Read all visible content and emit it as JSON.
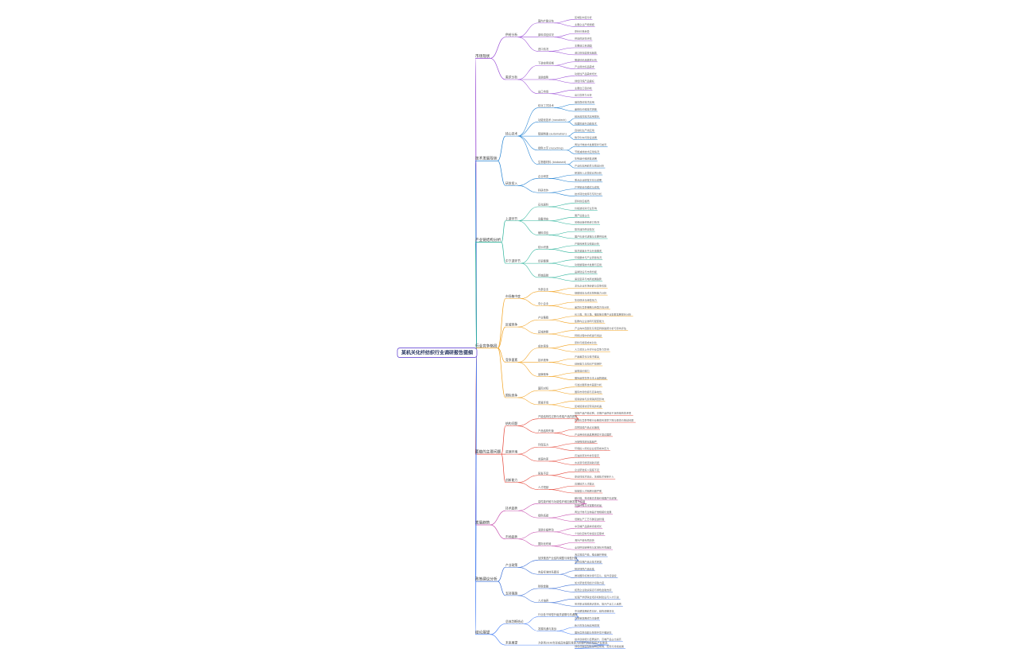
{
  "mindmap": {
    "root": {
      "label": "某机关化纤纺织行业调研报告提纲"
    },
    "colors": [
      "#9b4fd6",
      "#1f7fd1",
      "#2bb39a",
      "#f2a21e",
      "#e5473a",
      "#c74fae",
      "#3b6fd6",
      "#4f86f7"
    ],
    "branches": [
      {
        "label": "市场现状",
        "children": [
          {
            "label": "供给分析",
            "children": [
              {
                "label": "国内产能分布",
                "children": [
                  {
                    "label": "区域集中度分析"
                  },
                  {
                    "label": "主要企业产能规模"
                  }
                ]
              },
              {
                "label": "原料供应情况",
                "children": [
                  {
                    "label": "原料价格走势"
                  },
                  {
                    "label": "供应稳定性评估"
                  }
                ]
              },
              {
                "label": "进口情况",
                "children": [
                  {
                    "label": "主要进口来源国"
                  },
                  {
                    "label": "进口依存度变化趋势"
                  }
                ]
              }
            ]
          },
          {
            "label": "需求分析",
            "children": [
              {
                "label": "下游应用领域",
                "children": [
                  {
                    "label": "服装纺织品需求分析"
                  },
                  {
                    "label": "产业用纺织品需求"
                  }
                ]
              },
              {
                "label": "消费趋势",
                "children": [
                  {
                    "label": "功能性产品需求增长"
                  },
                  {
                    "label": "绿色环保产品偏好"
                  }
                ]
              },
              {
                "label": "出口市场",
                "children": [
                  {
                    "label": "主要出口目的地"
                  },
                  {
                    "label": "出口竞争力分析"
                  }
                ]
              }
            ]
          }
        ]
      },
      {
        "label": "技术发展现状",
        "children": [
          {
            "label": "核心技术",
            "children": [
              {
                "label": "纺丝工艺技术",
                "children": [
                  {
                    "label": "熔体直纺技术应用"
                  },
                  {
                    "label": "差别化纤维技术突破"
                  }
                ]
              },
              {
                "label": "功能化技术 (nanotech)",
                "children": [
                  {
                    "label": "纳米改性技术应用现状"
                  },
                  {
                    "label": "抗菌防紫外功能技术"
                  }
                ]
              },
              {
                "label": "智能制造 (automation)",
                "children": [
                  {
                    "label": "自动化生产线应用"
                  },
                  {
                    "label": "数字化车间建设进展"
                  }
                ]
              },
              {
                "label": "绿色工艺 (recycling)",
                "children": [
                  {
                    "label": "再生纤维技术发展现状与前景"
                  },
                  {
                    "label": "节能减排技术应用情况"
                  }
                ]
              },
              {
                "label": "生物基材料 (biobased)",
                "children": [
                  {
                    "label": "生物基纤维研发进展"
                  },
                  {
                    "label": "产业化应用前景与挑战分析"
                  }
                ]
              }
            ]
          },
          {
            "label": "研发投入",
            "children": [
              {
                "label": "企业研发",
                "children": [
                  {
                    "label": "研发投入占营收比例分析"
                  },
                  {
                    "label": "重点企业研发方向与成果"
                  }
                ]
              },
              {
                "label": "科研合作",
                "children": [
                  {
                    "label": "产学研合作模式与成效"
                  },
                  {
                    "label": "技术转化效率与专利分析"
                  }
                ]
              }
            ]
          }
        ]
      },
      {
        "label": "产业链结构分析",
        "children": [
          {
            "label": "上游环节",
            "children": [
              {
                "label": "石化原料",
                "children": [
                  {
                    "label": "原料供应格局"
                  },
                  {
                    "label": "价格波动对行业影响"
                  }
                ]
              },
              {
                "label": "设备供应",
                "children": [
                  {
                    "label": "国产设备占比"
                  },
                  {
                    "label": "关键设备依赖进口情况"
                  }
                ]
              },
              {
                "label": "辅料供应",
                "children": [
                  {
                    "label": "助剂油剂供应情况"
                  },
                  {
                    "label": "国产化替代进程与主要供应商"
                  }
                ]
              }
            ]
          },
          {
            "label": "中下游环节",
            "children": [
              {
                "label": "纺纱织造",
                "children": [
                  {
                    "label": "产能利用率与效益分析"
                  },
                  {
                    "label": "技术装备水平与升级需求"
                  }
                ]
              },
              {
                "label": "印染整理",
                "children": [
                  {
                    "label": "环保要求与产业转移情况"
                  },
                  {
                    "label": "功能整理技术发展与应用"
                  }
                ]
              },
              {
                "label": "终端品牌",
                "children": [
                  {
                    "label": "品牌建设与市场份额"
                  },
                  {
                    "label": "渠道变革与电商发展趋势"
                  }
                ]
              }
            ]
          }
        ]
      },
      {
        "label": "行业竞争格局",
        "children": [
          {
            "label": "市场集中度",
            "children": [
              {
                "label": "头部企业",
                "children": [
                  {
                    "label": "龙头企业市场份额与竞争优势"
                  },
                  {
                    "label": "规模效应与成本控制能力分析"
                  }
                ]
              },
              {
                "label": "中小企业",
                "children": [
                  {
                    "label": "生存现状与经营压力"
                  },
                  {
                    "label": "差异化竞争策略与转型方向分析"
                  }
                ]
              }
            ]
          },
          {
            "label": "区域竞争",
            "children": [
              {
                "label": "产业集群",
                "children": [
                  {
                    "label": "长三角、珠三角、福建等主要产业集群发展现状分析"
                  },
                  {
                    "label": "集群内企业协同与配套能力"
                  }
                ]
              },
              {
                "label": "区域转移",
                "children": [
                  {
                    "label": "产业向中西部及东南亚转移趋势分析与影响评估"
                  },
                  {
                    "label": "转移过程中的机遇与挑战"
                  }
                ]
              }
            ]
          },
          {
            "label": "竞争要素",
            "children": [
              {
                "label": "成本竞争",
                "children": [
                  {
                    "label": "原料与能源成本对比"
                  },
                  {
                    "label": "人工成本上升对行业竞争力影响"
                  }
                ]
              },
              {
                "label": "技术竞争",
                "children": [
                  {
                    "label": "产品差异化与技术壁垒"
                  },
                  {
                    "label": "创新能力与知识产权保护"
                  }
                ]
              },
              {
                "label": "品牌竞争",
                "children": [
                  {
                    "label": "品牌溢价能力"
                  },
                  {
                    "label": "国际品牌竞争与本土品牌崛起"
                  }
                ]
              }
            ]
          },
          {
            "label": "国际竞争",
            "children": [
              {
                "label": "国际对标",
                "children": [
                  {
                    "label": "与发达国家技术差距分析"
                  },
                  {
                    "label": "国际市场份额与竞争地位"
                  }
                ]
              },
              {
                "label": "贸易环境",
                "children": [
                  {
                    "label": "贸易摩擦与反倾销调查影响"
                  },
                  {
                    "label": "区域贸易协定带来的机遇"
                  }
                ]
              }
            ]
          }
        ]
      },
      {
        "label": "面临的主要问题",
        "children": [
          {
            "label": "结构问题",
            "children": [
              {
                "label": "产能结构性过剩与低端产品同质化",
                "children": [
                  {
                    "label": "常规产品产能过剩，高端产品供给不足的结构性矛盾"
                  },
                  {
                    "label": "同质化竞争导致行业整体利润率下降与恶性价格战问题"
                  }
                ]
              },
              {
                "label": "产品结构失衡",
                "children": [
                  {
                    "label": "高附加值产品占比偏低"
                  },
                  {
                    "label": "产业用纺织品发展滞后于发达国家"
                  }
                ]
              }
            ]
          },
          {
            "label": "资源环境",
            "children": [
              {
                "label": "环保压力",
                "children": [
                  {
                    "label": "污染物排放标准趋严"
                  },
                  {
                    "label": "环保投入增加企业经营成本压力"
                  }
                ]
              },
              {
                "label": "资源约束",
                "children": [
                  {
                    "label": "石油资源对外依存度高"
                  },
                  {
                    "label": "水资源与能源消耗问题"
                  }
                ]
              }
            ]
          },
          {
            "label": "创新能力",
            "children": [
              {
                "label": "研发不足",
                "children": [
                  {
                    "label": "企业研发投入强度不足"
                  },
                  {
                    "label": "原创性技术缺乏、关键技术受制于人"
                  }
                ]
              },
              {
                "label": "人才短缺",
                "children": [
                  {
                    "label": "高端技术人才匮乏"
                  },
                  {
                    "label": "技能型人才断层问题严重"
                  }
                ]
              }
            ]
          }
        ]
      },
      {
        "label": "发展趋势",
        "children": [
          {
            "label": "技术趋势",
            "children": [
              {
                "label": "高性能纤维与功能性纤维加速发展与应用",
                "children": [
                  {
                    "label": "碳纤维、芳纶等高性能纤维国产化进程"
                  },
                  {
                    "label": "智能纤维与可穿戴纺织品"
                  }
                ]
              },
              {
                "label": "绿色低碳",
                "children": [
                  {
                    "label": "再生纤维与生物基纤维规模化发展"
                  },
                  {
                    "label": "低碳生产工艺与碳足迹管理"
                  }
                ]
              }
            ]
          },
          {
            "label": "市场趋势",
            "children": [
              {
                "label": "消费升级带动",
                "children": [
                  {
                    "label": "中高端产品需求持续增长"
                  },
                  {
                    "label": "个性化定制与快速反应需求"
                  }
                ]
              },
              {
                "label": "国际化布局",
                "children": [
                  {
                    "label": "海外产能布局加快"
                  },
                  {
                    "label": "全球供应链重构与区域化布局趋势"
                  }
                ]
              }
            ]
          }
        ]
      },
      {
        "label": "政策建议分析",
        "children": [
          {
            "label": "产业政策",
            "children": [
              {
                "label": "加快推进产业结构调整与转型升级",
                "children": [
                  {
                    "label": "淘汰落后产能，推动兼并重组"
                  },
                  {
                    "label": "支持高端产品与技术研发"
                  }
                ]
              },
              {
                "label": "完善标准体系建设",
                "children": [
                  {
                    "label": "制定绿色产品标准"
                  },
                  {
                    "label": "推动国际标准对接与互认，提升话语权"
                  }
                ]
              }
            ]
          },
          {
            "label": "支持措施",
            "children": [
              {
                "label": "财税金融",
                "children": [
                  {
                    "label": "加大研发费用加计扣除力度"
                  },
                  {
                    "label": "拓宽企业融资渠道与绿色金融支持"
                  }
                ]
              },
              {
                "label": "人才培养",
                "children": [
                  {
                    "label": "加强产学研联合培养机制建设与人才引进"
                  },
                  {
                    "label": "完善职业技能培训体系，提升产业工人素质"
                  }
                ]
              }
            ]
          }
        ]
      },
      {
        "label": "结论展望",
        "children": [
          {
            "label": "总体判断结论",
            "children": [
              {
                "label": "行业处于转型升级关键期与机遇期",
                "children": [
                  {
                    "label": "中长期发展前景向好，结构调整深化"
                  },
                  {
                    "label": "高质量发展成为主旋律"
                  }
                ]
              },
              {
                "label": "发展机遇与挑战",
                "children": [
                  {
                    "label": "新兴市场与新应用领域"
                  },
                  {
                    "label": "国际竞争加剧与贸易环境不确定性"
                  }
                ]
              }
            ]
          },
          {
            "label": "未来展望",
            "children": [
              {
                "label": "力争到2030年形成具有国际竞争力的现代化纤纺织产业体系",
                "children": [
                  {
                    "label": "技术创新能力显著提升，高端产品占比提高"
                  },
                  {
                    "label": "绿色低碳转型取得明显成效，实现可持续发展"
                  }
                ]
              }
            ]
          }
        ]
      }
    ]
  }
}
